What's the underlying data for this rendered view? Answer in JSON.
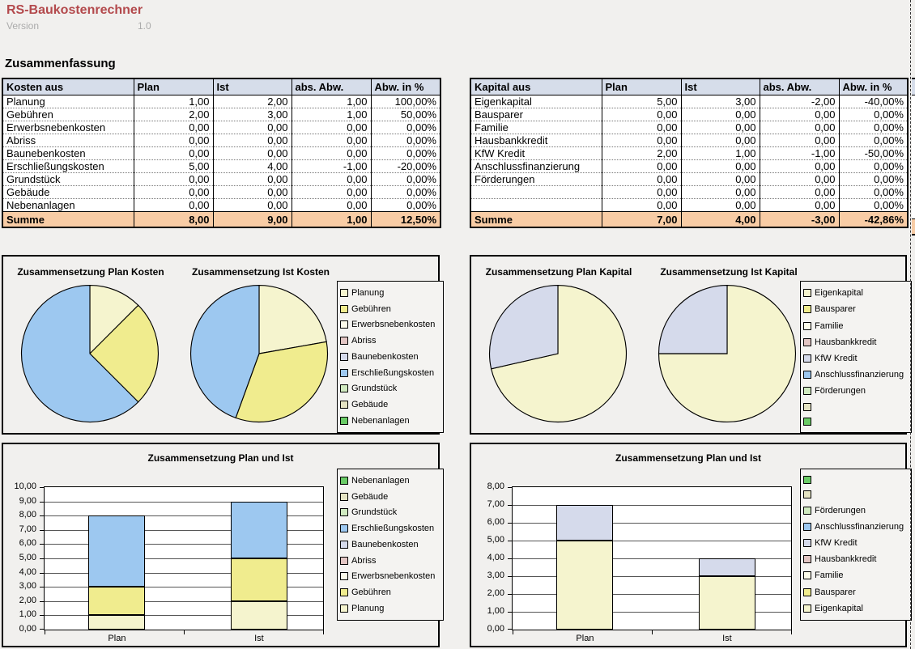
{
  "header": {
    "title": "RS-Baukostenrechner",
    "version_label": "Version",
    "version_value": "1.0"
  },
  "section_title": "Zusammenfassung",
  "colors": {
    "accent_title": "#B3494C",
    "table_header_bg": "#D6DDEA",
    "summe_row_bg": "#F8CCA5",
    "palette": [
      "#F5F4CE",
      "#F0EC8E",
      "#FCFBEA",
      "#E2C5C3",
      "#D5DAEB",
      "#9DC8F0",
      "#D0EAC0",
      "#E4E3C3",
      "#6ACB66"
    ]
  },
  "tables": {
    "kosten": {
      "headers": [
        "Kosten aus",
        "Plan",
        "Ist",
        "abs. Abw.",
        "Abw. in %"
      ],
      "rows": [
        [
          "Planung",
          "1,00",
          "2,00",
          "1,00",
          "100,00%"
        ],
        [
          "Gebühren",
          "2,00",
          "3,00",
          "1,00",
          "50,00%"
        ],
        [
          "Erwerbsnebenkosten",
          "0,00",
          "0,00",
          "0,00",
          "0,00%"
        ],
        [
          "Abriss",
          "0,00",
          "0,00",
          "0,00",
          "0,00%"
        ],
        [
          "Baunebenkosten",
          "0,00",
          "0,00",
          "0,00",
          "0,00%"
        ],
        [
          "Erschließungskosten",
          "5,00",
          "4,00",
          "-1,00",
          "-20,00%"
        ],
        [
          "Grundstück",
          "0,00",
          "0,00",
          "0,00",
          "0,00%"
        ],
        [
          "Gebäude",
          "0,00",
          "0,00",
          "0,00",
          "0,00%"
        ],
        [
          "Nebenanlagen",
          "0,00",
          "0,00",
          "0,00",
          "0,00%"
        ]
      ],
      "summe": [
        "Summe",
        "8,00",
        "9,00",
        "1,00",
        "12,50%"
      ]
    },
    "kapital": {
      "headers": [
        "Kapital aus",
        "Plan",
        "Ist",
        "abs. Abw.",
        "Abw. in %"
      ],
      "rows": [
        [
          "Eigenkapital",
          "5,00",
          "3,00",
          "-2,00",
          "-40,00%"
        ],
        [
          "Bausparer",
          "0,00",
          "0,00",
          "0,00",
          "0,00%"
        ],
        [
          "Familie",
          "0,00",
          "0,00",
          "0,00",
          "0,00%"
        ],
        [
          "Hausbankkredit",
          "0,00",
          "0,00",
          "0,00",
          "0,00%"
        ],
        [
          "KfW Kredit",
          "2,00",
          "1,00",
          "-1,00",
          "-50,00%"
        ],
        [
          "Anschlussfinanzierung",
          "0,00",
          "0,00",
          "0,00",
          "0,00%"
        ],
        [
          "Förderungen",
          "0,00",
          "0,00",
          "0,00",
          "0,00%"
        ],
        [
          "",
          "0,00",
          "0,00",
          "0,00",
          "0,00%"
        ],
        [
          "",
          "0,00",
          "0,00",
          "0,00",
          "0,00%"
        ]
      ],
      "summe": [
        "Summe",
        "7,00",
        "4,00",
        "-3,00",
        "-42,86%"
      ]
    }
  },
  "legends": {
    "kosten_pie": [
      {
        "label": "Planung",
        "color": "#F5F4CE"
      },
      {
        "label": "Gebühren",
        "color": "#F0EC8E"
      },
      {
        "label": "Erwerbsnebenkosten",
        "color": "#FCFBEA"
      },
      {
        "label": "Abriss",
        "color": "#E2C5C3"
      },
      {
        "label": "Baunebenkosten",
        "color": "#D5DAEB"
      },
      {
        "label": "Erschließungskosten",
        "color": "#9DC8F0"
      },
      {
        "label": "Grundstück",
        "color": "#D0EAC0"
      },
      {
        "label": "Gebäude",
        "color": "#E4E3C3"
      },
      {
        "label": "Nebenanlagen",
        "color": "#6ACB66"
      }
    ],
    "kapital_pie": [
      {
        "label": "Eigenkapital",
        "color": "#F5F4CE"
      },
      {
        "label": "Bausparer",
        "color": "#F0EC8E"
      },
      {
        "label": "Familie",
        "color": "#FCFBEA"
      },
      {
        "label": "Hausbankkredit",
        "color": "#E2C5C3"
      },
      {
        "label": "KfW Kredit",
        "color": "#D5DAEB"
      },
      {
        "label": "Anschlussfinanzierung",
        "color": "#9DC8F0"
      },
      {
        "label": "Förderungen",
        "color": "#D0EAC0"
      },
      {
        "label": "",
        "color": "#E4E3C3"
      },
      {
        "label": "",
        "color": "#6ACB66"
      }
    ],
    "kosten_bar": [
      {
        "label": "Nebenanlagen",
        "color": "#6ACB66"
      },
      {
        "label": "Gebäude",
        "color": "#E4E3C3"
      },
      {
        "label": "Grundstück",
        "color": "#D0EAC0"
      },
      {
        "label": "Erschließungskosten",
        "color": "#9DC8F0"
      },
      {
        "label": "Baunebenkosten",
        "color": "#D5DAEB"
      },
      {
        "label": "Abriss",
        "color": "#E2C5C3"
      },
      {
        "label": "Erwerbsnebenkosten",
        "color": "#FCFBEA"
      },
      {
        "label": "Gebühren",
        "color": "#F0EC8E"
      },
      {
        "label": "Planung",
        "color": "#F5F4CE"
      }
    ],
    "kapital_bar": [
      {
        "label": "",
        "color": "#6ACB66"
      },
      {
        "label": "",
        "color": "#E4E3C3"
      },
      {
        "label": "Förderungen",
        "color": "#D0EAC0"
      },
      {
        "label": "Anschlussfinanzierung",
        "color": "#9DC8F0"
      },
      {
        "label": "KfW Kredit",
        "color": "#D5DAEB"
      },
      {
        "label": "Hausbankkredit",
        "color": "#E2C5C3"
      },
      {
        "label": "Familie",
        "color": "#FCFBEA"
      },
      {
        "label": "Bausparer",
        "color": "#F0EC8E"
      },
      {
        "label": "Eigenkapital",
        "color": "#F5F4CE"
      }
    ]
  },
  "chart_data": [
    {
      "type": "pie",
      "title": "Zusammensetzung Plan Kosten",
      "labels": [
        "Planung",
        "Gebühren",
        "Erwerbsnebenkosten",
        "Abriss",
        "Baunebenkosten",
        "Erschließungskosten",
        "Grundstück",
        "Gebäude",
        "Nebenanlagen"
      ],
      "values": [
        1,
        2,
        0,
        0,
        0,
        5,
        0,
        0,
        0
      ],
      "colors": [
        "#F5F4CE",
        "#F0EC8E",
        "#FCFBEA",
        "#E2C5C3",
        "#D5DAEB",
        "#9DC8F0",
        "#D0EAC0",
        "#E4E3C3",
        "#6ACB66"
      ],
      "legend_position": "right"
    },
    {
      "type": "pie",
      "title": "Zusammensetzung Ist Kosten",
      "labels": [
        "Planung",
        "Gebühren",
        "Erwerbsnebenkosten",
        "Abriss",
        "Baunebenkosten",
        "Erschließungskosten",
        "Grundstück",
        "Gebäude",
        "Nebenanlagen"
      ],
      "values": [
        2,
        3,
        0,
        0,
        0,
        4,
        0,
        0,
        0
      ],
      "colors": [
        "#F5F4CE",
        "#F0EC8E",
        "#FCFBEA",
        "#E2C5C3",
        "#D5DAEB",
        "#9DC8F0",
        "#D0EAC0",
        "#E4E3C3",
        "#6ACB66"
      ],
      "legend_position": "right"
    },
    {
      "type": "pie",
      "title": "Zusammensetzung Plan Kapital",
      "labels": [
        "Eigenkapital",
        "Bausparer",
        "Familie",
        "Hausbankkredit",
        "KfW Kredit",
        "Anschlussfinanzierung",
        "Förderungen",
        "",
        ""
      ],
      "values": [
        5,
        0,
        0,
        0,
        2,
        0,
        0,
        0,
        0
      ],
      "colors": [
        "#F5F4CE",
        "#F0EC8E",
        "#FCFBEA",
        "#E2C5C3",
        "#D5DAEB",
        "#9DC8F0",
        "#D0EAC0",
        "#E4E3C3",
        "#6ACB66"
      ],
      "legend_position": "right"
    },
    {
      "type": "pie",
      "title": "Zusammensetzung Ist Kapital",
      "labels": [
        "Eigenkapital",
        "Bausparer",
        "Familie",
        "Hausbankkredit",
        "KfW Kredit",
        "Anschlussfinanzierung",
        "Förderungen",
        "",
        ""
      ],
      "values": [
        3,
        0,
        0,
        0,
        1,
        0,
        0,
        0,
        0
      ],
      "colors": [
        "#F5F4CE",
        "#F0EC8E",
        "#FCFBEA",
        "#E2C5C3",
        "#D5DAEB",
        "#9DC8F0",
        "#D0EAC0",
        "#E4E3C3",
        "#6ACB66"
      ],
      "legend_position": "right"
    },
    {
      "type": "bar",
      "stacked": true,
      "title": "Zusammensetzung Plan und Ist",
      "categories": [
        "Plan",
        "Ist"
      ],
      "ylim": [
        0,
        10
      ],
      "ytick": 1,
      "grid": true,
      "legend_position": "right",
      "series": [
        {
          "name": "Planung",
          "color": "#F5F4CE",
          "values": [
            1,
            2
          ]
        },
        {
          "name": "Gebühren",
          "color": "#F0EC8E",
          "values": [
            2,
            3
          ]
        },
        {
          "name": "Erwerbsnebenkosten",
          "color": "#FCFBEA",
          "values": [
            0,
            0
          ]
        },
        {
          "name": "Abriss",
          "color": "#E2C5C3",
          "values": [
            0,
            0
          ]
        },
        {
          "name": "Baunebenkosten",
          "color": "#D5DAEB",
          "values": [
            0,
            0
          ]
        },
        {
          "name": "Erschließungskosten",
          "color": "#9DC8F0",
          "values": [
            5,
            4
          ]
        },
        {
          "name": "Grundstück",
          "color": "#D0EAC0",
          "values": [
            0,
            0
          ]
        },
        {
          "name": "Gebäude",
          "color": "#E4E3C3",
          "values": [
            0,
            0
          ]
        },
        {
          "name": "Nebenanlagen",
          "color": "#6ACB66",
          "values": [
            0,
            0
          ]
        }
      ]
    },
    {
      "type": "bar",
      "stacked": true,
      "title": "Zusammensetzung Plan und Ist",
      "categories": [
        "Plan",
        "Ist"
      ],
      "ylim": [
        0,
        8
      ],
      "ytick": 1,
      "grid": true,
      "legend_position": "right",
      "series": [
        {
          "name": "Eigenkapital",
          "color": "#F5F4CE",
          "values": [
            5,
            3
          ]
        },
        {
          "name": "Bausparer",
          "color": "#F0EC8E",
          "values": [
            0,
            0
          ]
        },
        {
          "name": "Familie",
          "color": "#FCFBEA",
          "values": [
            0,
            0
          ]
        },
        {
          "name": "Hausbankkredit",
          "color": "#E2C5C3",
          "values": [
            0,
            0
          ]
        },
        {
          "name": "KfW Kredit",
          "color": "#D5DAEB",
          "values": [
            2,
            1
          ]
        },
        {
          "name": "Anschlussfinanzierung",
          "color": "#9DC8F0",
          "values": [
            0,
            0
          ]
        },
        {
          "name": "Förderungen",
          "color": "#D0EAC0",
          "values": [
            0,
            0
          ]
        },
        {
          "name": "",
          "color": "#E4E3C3",
          "values": [
            0,
            0
          ]
        },
        {
          "name": "",
          "color": "#6ACB66",
          "values": [
            0,
            0
          ]
        }
      ]
    }
  ]
}
